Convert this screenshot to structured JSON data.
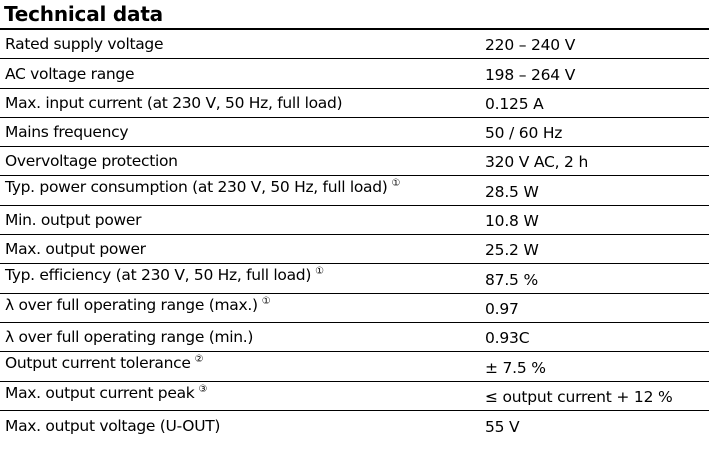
{
  "document": {
    "title": "Technical data",
    "rows": [
      {
        "label": "Rated supply voltage",
        "note": "",
        "value": "220 – 240 V"
      },
      {
        "label": "AC voltage range",
        "note": "",
        "value": "198 – 264 V"
      },
      {
        "label": "Max. input current (at 230 V, 50 Hz, full load)",
        "note": "",
        "value": "0.125 A"
      },
      {
        "label": "Mains frequency",
        "note": "",
        "value": "50 / 60 Hz"
      },
      {
        "label": "Overvoltage protection",
        "note": "",
        "value": "320 V AC, 2 h"
      },
      {
        "label": "Typ. power consumption (at 230 V, 50 Hz, full load)",
        "note": "①",
        "value": "28.5 W"
      },
      {
        "label": "Min. output power",
        "note": "",
        "value": "10.8 W"
      },
      {
        "label": "Max. output power",
        "note": "",
        "value": "25.2 W"
      },
      {
        "label": "Typ. efficiency (at 230 V, 50 Hz, full load)",
        "note": "①",
        "value": "87.5 %"
      },
      {
        "label": "λ over full operating range (max.)",
        "note": "①",
        "value": "0.97"
      },
      {
        "label": "λ over full operating range (min.)",
        "note": "",
        "value": "0.93C"
      },
      {
        "label": "Output current tolerance",
        "note": "②",
        "value": "± 7.5 %"
      },
      {
        "label": "Max. output current peak",
        "note": "③",
        "value": "≤ output current + 12 %"
      },
      {
        "label": "Max. output voltage (U-OUT)",
        "note": "",
        "value": "55 V"
      }
    ]
  }
}
